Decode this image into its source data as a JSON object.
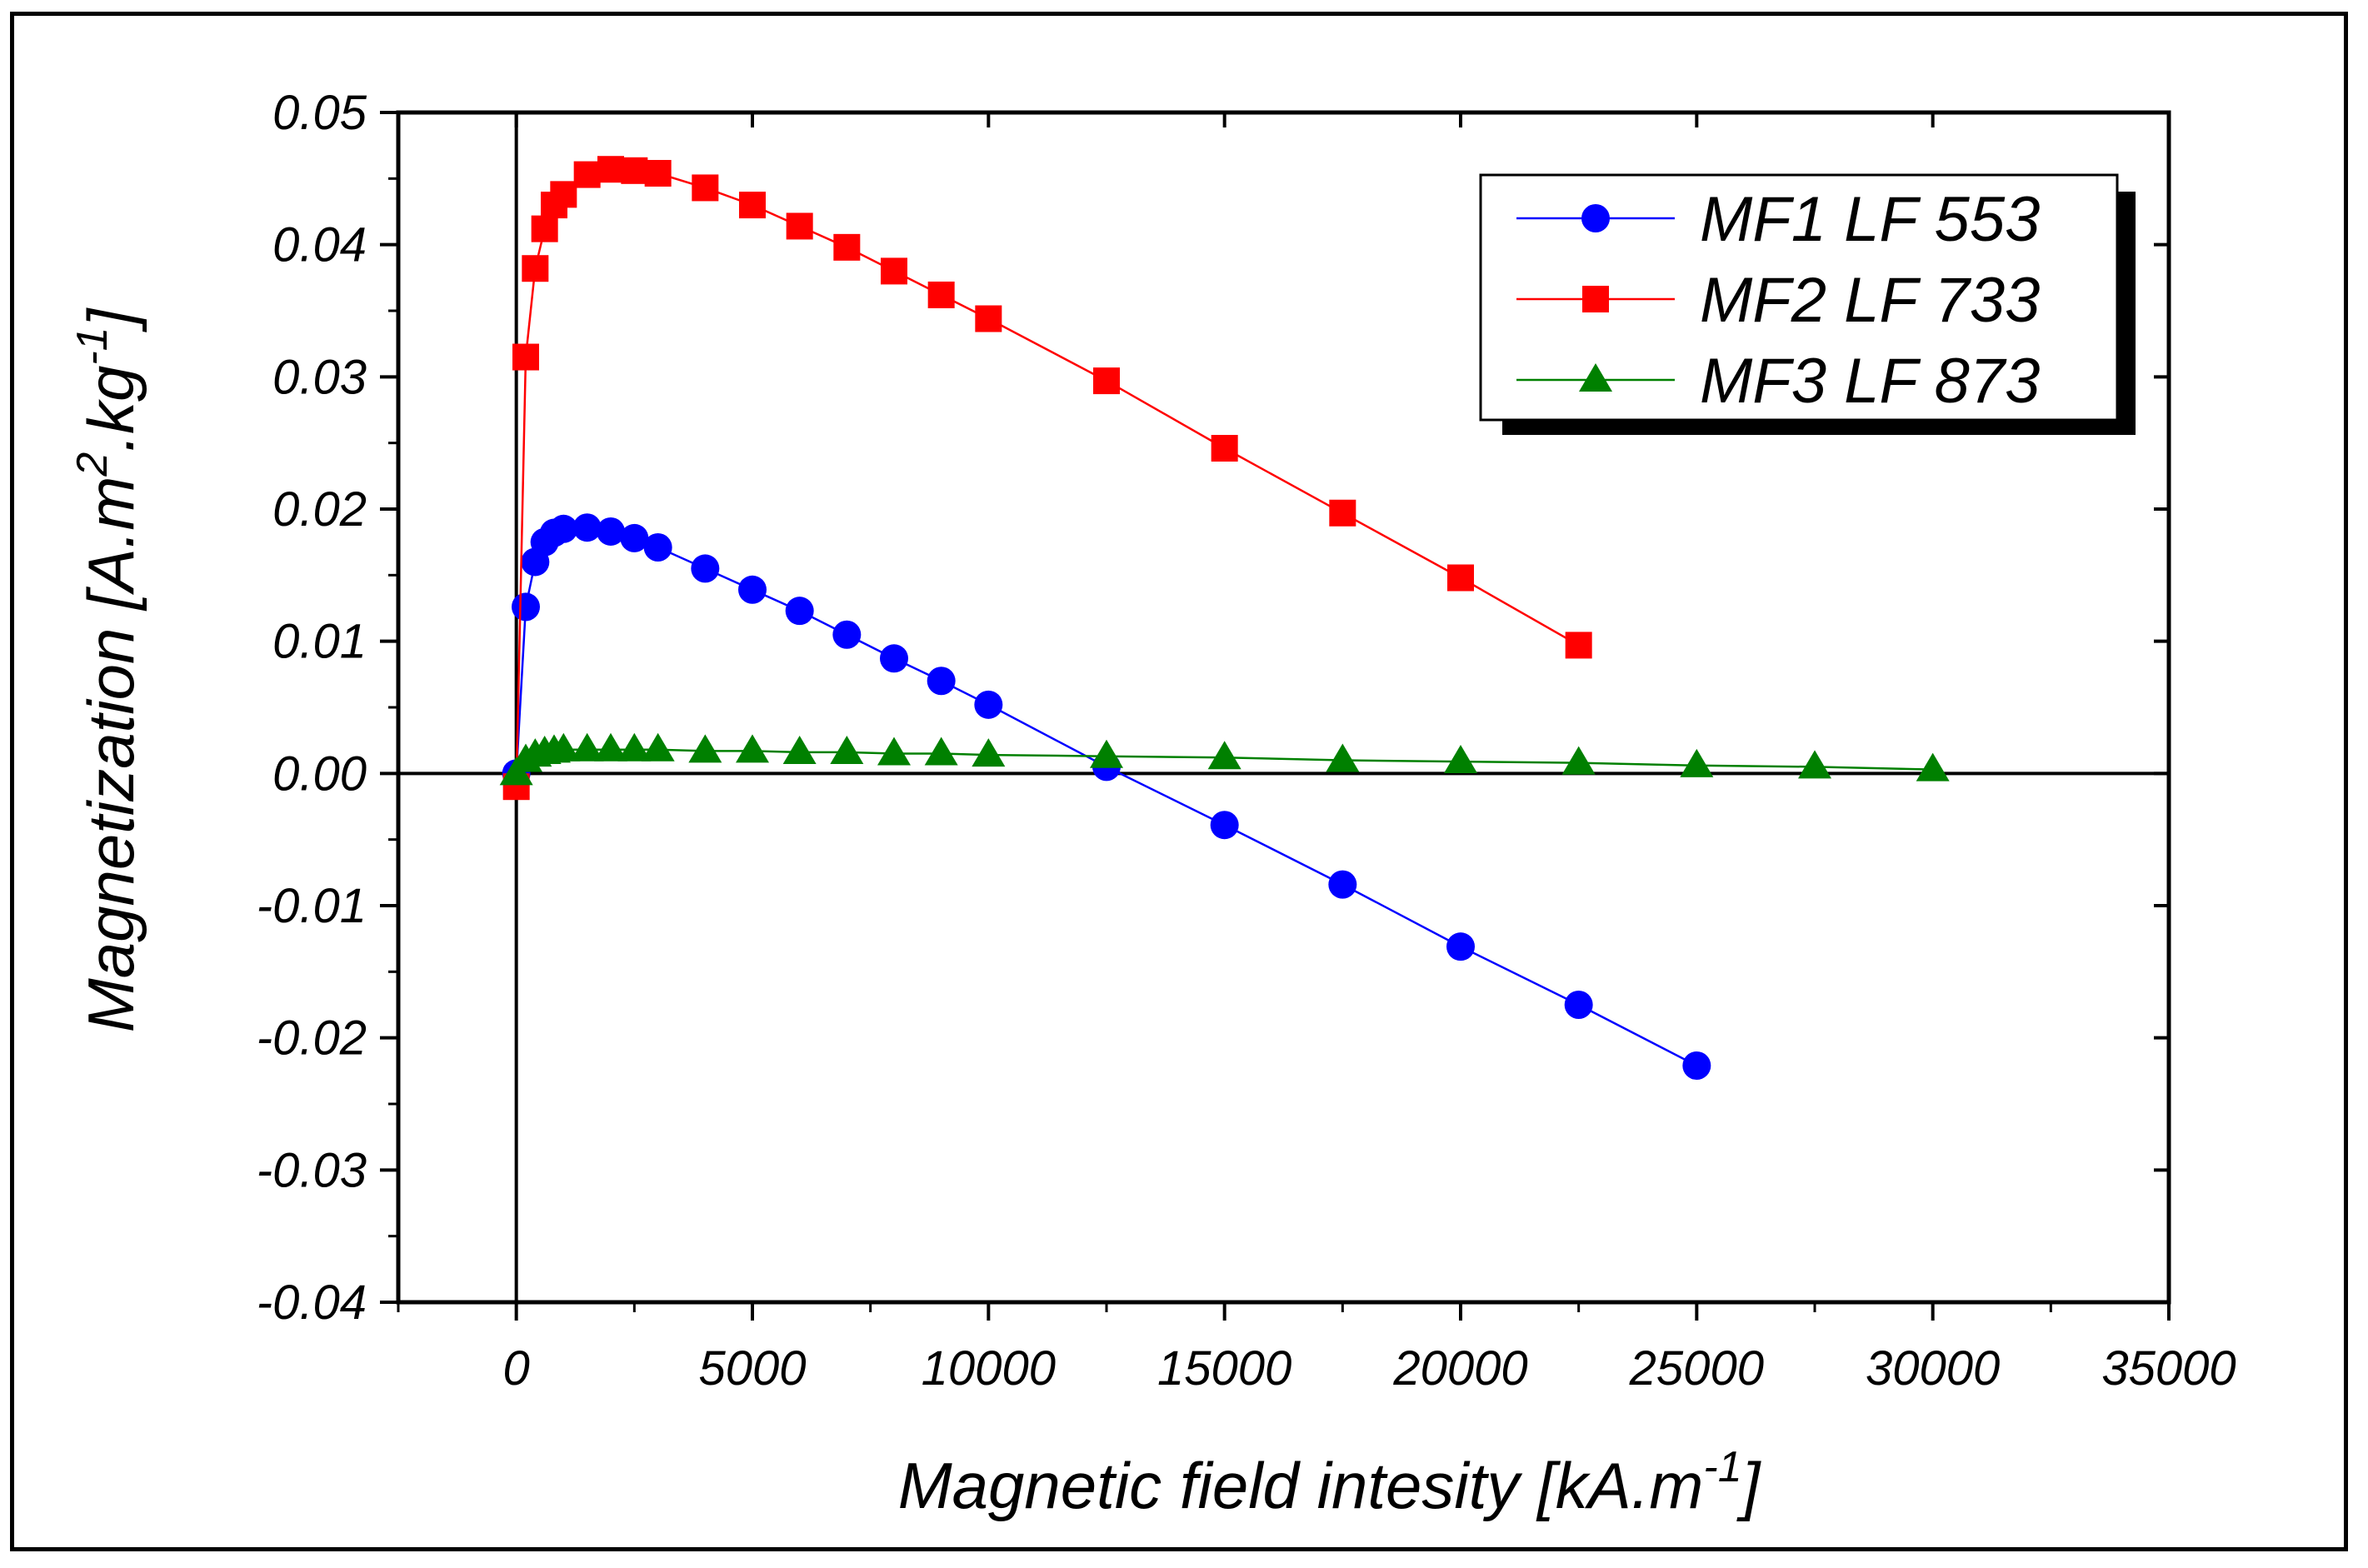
{
  "chart_data": {
    "type": "scatter",
    "xlabel_main": "Magnetic field intesity [kA.m",
    "xlabel_sup": "-1",
    "xlabel_end": "]",
    "ylabel_parts": [
      {
        "text": "Magnetization [A.m",
        "sup": false
      },
      {
        "text": "2",
        "sup": true
      },
      {
        "text": ".kg",
        "sup": false
      },
      {
        "text": "-1",
        "sup": true
      },
      {
        "text": "]",
        "sup": false
      }
    ],
    "xlim": [
      -2500,
      35000
    ],
    "ylim": [
      -0.04,
      0.05
    ],
    "xticks": [
      0,
      5000,
      10000,
      15000,
      20000,
      25000,
      30000,
      35000
    ],
    "xtick_labels": [
      "0",
      "5000",
      "10000",
      "15000",
      "20000",
      "25000",
      "30000",
      "35000"
    ],
    "yticks": [
      0.05,
      0.04,
      0.03,
      0.02,
      0.01,
      0.0,
      -0.01,
      -0.02,
      -0.03,
      -0.04
    ],
    "ytick_labels": [
      "0.05",
      "0.04",
      "0.03",
      "0.02",
      "0.01",
      "0.00",
      "-0.01",
      "-0.02",
      "-0.03",
      "-0.04"
    ],
    "legend_position": "top-right",
    "series": [
      {
        "name": "MF1 LF 553",
        "color": "#0000ff",
        "marker": "circle",
        "x": [
          0,
          200,
          400,
          600,
          800,
          1000,
          1500,
          2000,
          2500,
          3000,
          4000,
          5000,
          6000,
          7000,
          8000,
          9000,
          10000,
          12500,
          15000,
          17500,
          20000,
          22500,
          25000
        ],
        "y": [
          0.0,
          0.0126,
          0.016,
          0.0175,
          0.0182,
          0.0185,
          0.0186,
          0.0183,
          0.0178,
          0.0171,
          0.0155,
          0.0139,
          0.0123,
          0.0105,
          0.0087,
          0.007,
          0.0052,
          0.0005,
          -0.0039,
          -0.0084,
          -0.0131,
          -0.0175,
          -0.0221
        ]
      },
      {
        "name": "MF2 LF 733",
        "color": "#ff0000",
        "marker": "square",
        "x": [
          0,
          200,
          400,
          600,
          800,
          1000,
          1500,
          2000,
          2500,
          3000,
          4000,
          5000,
          6000,
          7000,
          8000,
          9000,
          10000,
          12500,
          15000,
          17500,
          20000,
          22500
        ],
        "y": [
          -0.001,
          0.0315,
          0.0382,
          0.0412,
          0.043,
          0.0438,
          0.0453,
          0.0457,
          0.0456,
          0.0454,
          0.0443,
          0.043,
          0.0414,
          0.0398,
          0.038,
          0.0362,
          0.0344,
          0.0297,
          0.0246,
          0.0197,
          0.0148,
          0.0097
        ]
      },
      {
        "name": "MF3 LF 873",
        "color": "#008000",
        "marker": "triangle",
        "x": [
          0,
          200,
          400,
          600,
          800,
          1000,
          1500,
          2000,
          2500,
          3000,
          4000,
          5000,
          6000,
          7000,
          8000,
          9000,
          10000,
          12500,
          15000,
          17500,
          20000,
          22500,
          25000,
          27500,
          30000
        ],
        "y": [
          0.0,
          0.001,
          0.0014,
          0.0016,
          0.0017,
          0.0018,
          0.0018,
          0.0018,
          0.0018,
          0.0018,
          0.0017,
          0.0017,
          0.0016,
          0.0016,
          0.0015,
          0.0015,
          0.0014,
          0.0013,
          0.0012,
          0.001,
          0.0009,
          0.0008,
          0.0006,
          0.0005,
          0.0003
        ]
      }
    ]
  }
}
